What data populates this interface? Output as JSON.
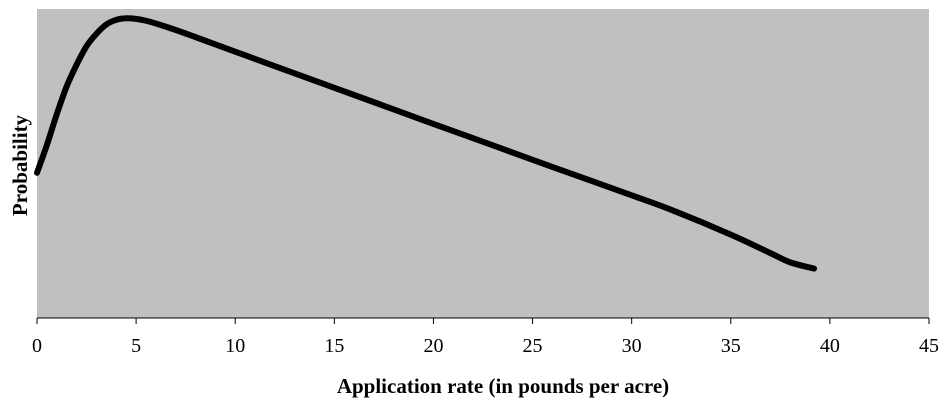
{
  "chart_data": {
    "type": "line",
    "title": "",
    "xlabel": "Application rate (in pounds per acre)",
    "ylabel": "Probability",
    "xlim": [
      0,
      45
    ],
    "ylim": [
      0,
      1
    ],
    "xticks": [
      "0",
      "5",
      "10",
      "15",
      "20",
      "25",
      "30",
      "35",
      "40",
      "45"
    ],
    "yticks_shown": false,
    "grid": false,
    "legend": "none",
    "plot_background": "#c0c0c0",
    "line_color": "#000000",
    "series": [
      {
        "x": [
          0,
          0.5,
          1,
          1.5,
          2,
          2.5,
          3,
          3.5,
          4,
          4.5,
          5,
          5.5,
          6,
          7,
          8,
          10,
          12,
          15,
          18,
          20,
          22,
          25,
          28,
          30,
          32,
          35,
          37,
          38,
          39.2
        ],
        "y": [
          0.47,
          0.56,
          0.66,
          0.75,
          0.82,
          0.88,
          0.92,
          0.95,
          0.965,
          0.97,
          0.968,
          0.962,
          0.953,
          0.932,
          0.909,
          0.862,
          0.815,
          0.745,
          0.675,
          0.628,
          0.582,
          0.512,
          0.443,
          0.397,
          0.35,
          0.27,
          0.21,
          0.18,
          0.16
        ]
      }
    ]
  }
}
